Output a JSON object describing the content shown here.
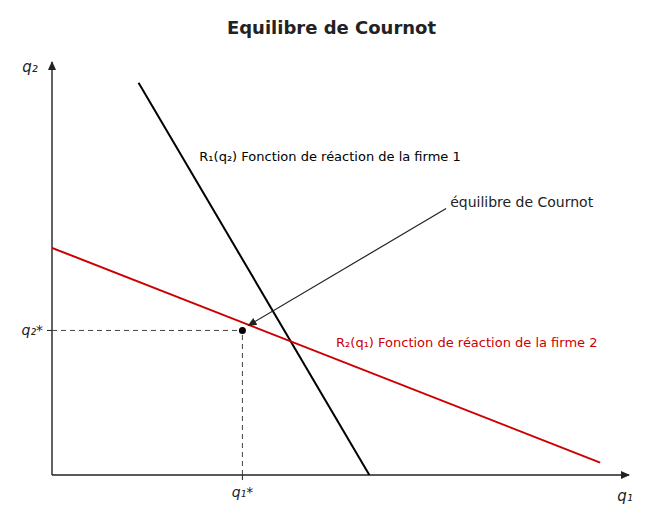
{
  "chart_data": {
    "type": "line",
    "title": "Equilibre de Cournot",
    "x_label": "q₁",
    "y_label": "q₂",
    "xlim": [
      0,
      10
    ],
    "ylim": [
      0,
      10
    ],
    "xticks": [
      {
        "value": 3.3,
        "label": "q₁*"
      }
    ],
    "yticks": [
      {
        "value": 3.5,
        "label": "q₂*"
      }
    ],
    "grid": false,
    "series": [
      {
        "name": "R₁(q₂)  Fonction de réaction de la firme 1",
        "color": "#000000",
        "x": [
          1.5,
          5.5
        ],
        "values": [
          9.5,
          0.0
        ]
      },
      {
        "name": "R₂(q₁) Fonction  de réaction de la firme 2",
        "color": "#cc0000",
        "x": [
          0.0,
          9.5
        ],
        "values": [
          5.5,
          0.3
        ]
      },
      {
        "type": "scatter",
        "marker": "circle",
        "color": "#000000",
        "x": [
          3.3
        ],
        "values": [
          3.5
        ]
      }
    ],
    "annotations": [
      {
        "text": "équilibre de Cournot",
        "x": 3.3,
        "y": 3.5
      }
    ]
  }
}
